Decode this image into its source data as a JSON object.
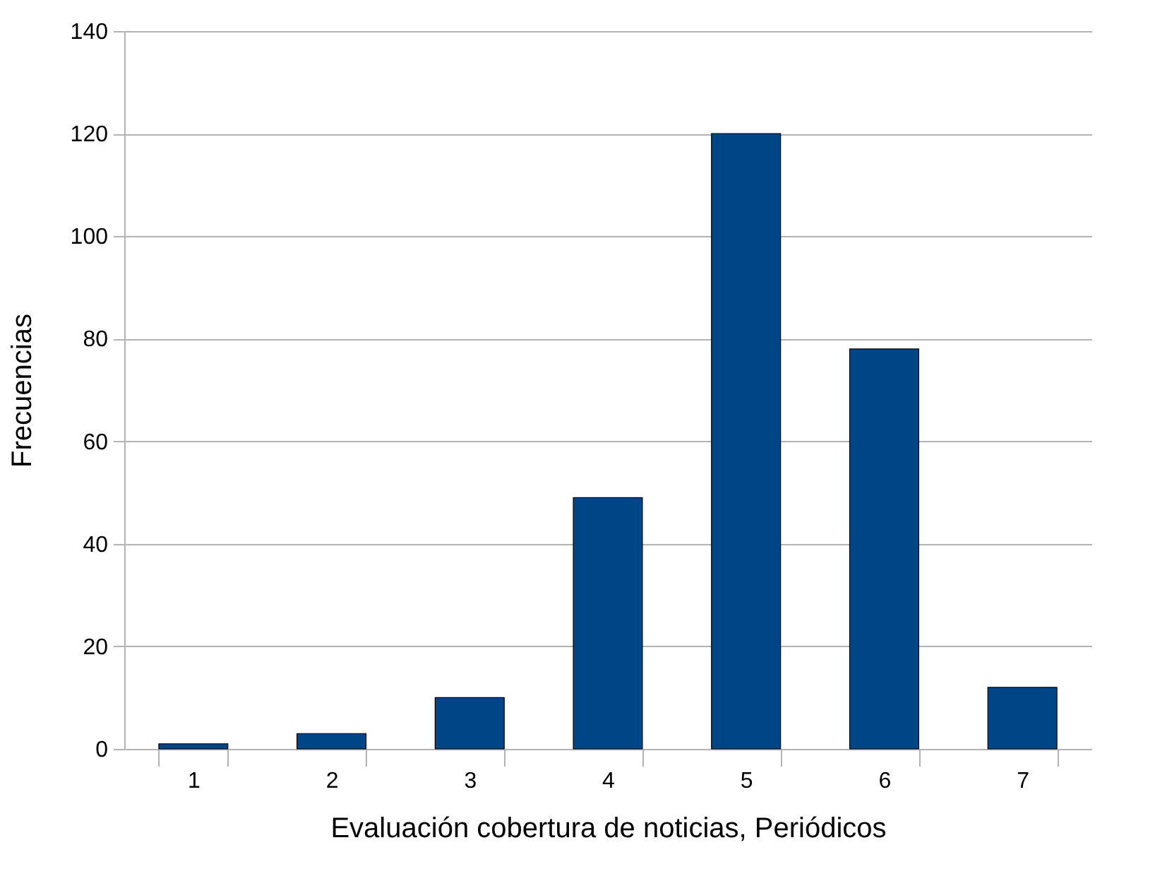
{
  "chart_data": {
    "type": "bar",
    "xlabel": "Evaluación cobertura de noticias, Periódicos",
    "ylabel": "Frecuencias",
    "categories": [
      "1",
      "2",
      "3",
      "4",
      "5",
      "6",
      "7"
    ],
    "values": [
      1,
      3,
      10,
      49,
      120,
      78,
      12
    ],
    "color": "#004586",
    "ylim": [
      0,
      140
    ],
    "yticks": [
      0,
      20,
      40,
      60,
      80,
      100,
      120,
      140
    ],
    "grid": "y"
  }
}
